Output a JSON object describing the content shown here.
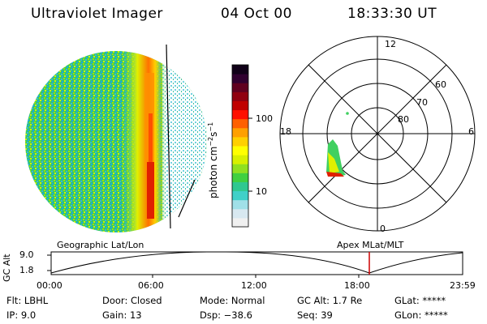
{
  "header": {
    "instrument": "Ultraviolet Imager",
    "date": "04 Oct 00",
    "time": "18:33:30 UT"
  },
  "colorbar": {
    "unit_label": "photon cm",
    "ticks": [
      "100",
      "10"
    ],
    "palette": [
      "#f0f0f0",
      "#d8e8f0",
      "#a0e0e8",
      "#40d0c8",
      "#30c890",
      "#40d040",
      "#90e020",
      "#d8f000",
      "#ffff00",
      "#ffd000",
      "#ffa000",
      "#ff6000",
      "#ff1000",
      "#c00000",
      "#900010",
      "#600020",
      "#300030",
      "#100018"
    ]
  },
  "polar_plot": {
    "mlt_labels": {
      "top": "12",
      "left": "18",
      "right": "6",
      "bottom": "0"
    },
    "lat_labels": [
      "60",
      "70",
      "80"
    ]
  },
  "timeline": {
    "left_title": "Geographic Lat/Lon",
    "right_title": "Apex  MLat/MLT",
    "y_axis_label": "GC Alt",
    "y_ticks": [
      "9.0",
      "1.8"
    ],
    "x_ticks": [
      "00:00",
      "06:00",
      "12:00",
      "18:00",
      "23:59"
    ],
    "marker_color": "#cc0000"
  },
  "status": {
    "filter": "Flt:  LBHL",
    "ip": "IP:  9.0",
    "door": "Door:  Closed",
    "gain": "Gain:  13",
    "mode": "Mode:  Normal",
    "dsp": "Dsp:   −38.6",
    "gc_alt": "GC Alt:  1.7 Re",
    "seq": "Seq:  39",
    "glat": "GLat:  *****",
    "glon": "GLon:  *****"
  }
}
